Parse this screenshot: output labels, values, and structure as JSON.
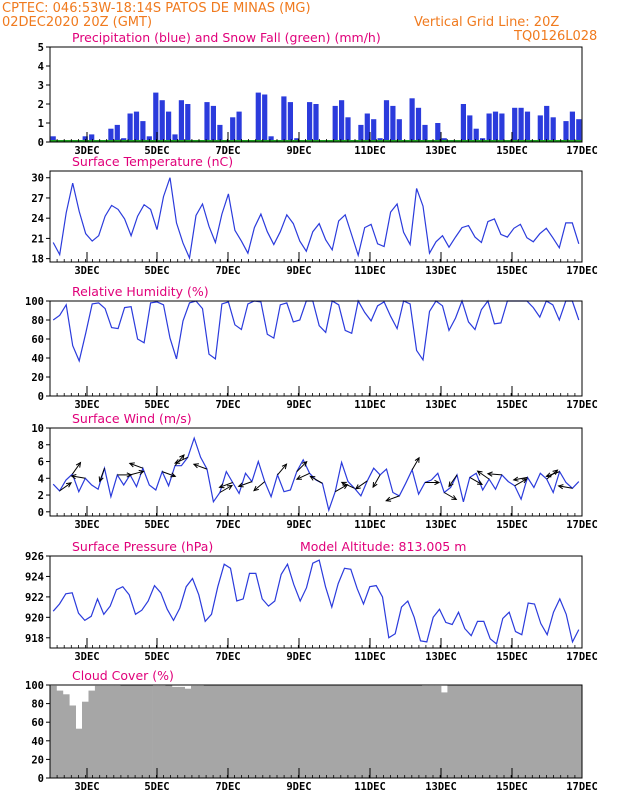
{
  "header": {
    "line1": "CPTEC:  046:53W-18:14S  PATOS DE MINAS (MG)",
    "line2": "02DEC2020 20Z (GMT)",
    "grid_note": "Vertical Grid Line: 20Z",
    "code": "TQ0126L028"
  },
  "colors": {
    "header": "#f07a1e",
    "title": "#e0007a",
    "line": "#2b3bdc",
    "snow": "#1c9c1c",
    "cloud": "#a6a6a6"
  },
  "x_labels": [
    "3DEC",
    "5DEC",
    "7DEC",
    "9DEC",
    "11DEC",
    "13DEC",
    "15DEC",
    "17DEC"
  ],
  "chart_data": [
    {
      "type": "bar",
      "title": "Precipitation (blue) and Snow Fall (green) (mm/h)",
      "ylim": [
        0,
        5
      ],
      "yticks": [
        0,
        1,
        2,
        3,
        4,
        5
      ],
      "series": [
        {
          "name": "Precipitation",
          "color": "#2b3bdc",
          "values": [
            0.3,
            0.0,
            0.0,
            0.0,
            0.0,
            0.3,
            0.4,
            0.1,
            0.0,
            0.7,
            0.9,
            0.2,
            1.5,
            1.6,
            1.1,
            0.3,
            2.6,
            2.2,
            1.6,
            0.4,
            2.2,
            2.0,
            0.0,
            0.0,
            2.1,
            1.9,
            0.9,
            0.0,
            1.3,
            1.6,
            0.0,
            0.0,
            2.6,
            2.5,
            0.3,
            0.0,
            2.4,
            2.1,
            0.2,
            0.0,
            2.1,
            2.0,
            0.0,
            0.0,
            1.9,
            2.2,
            1.3,
            0.0,
            0.9,
            1.5,
            1.2,
            0.2,
            2.2,
            1.9,
            1.2,
            0.0,
            2.3,
            1.8,
            0.9,
            0.0,
            1.0,
            0.2,
            0.0,
            0.0,
            2.0,
            1.4,
            0.7,
            0.2,
            1.5,
            1.6,
            1.5,
            0.0,
            1.8,
            1.8,
            1.6,
            0.0,
            1.4,
            1.9,
            1.3,
            0.0,
            1.1,
            1.6,
            1.2
          ]
        },
        {
          "name": "Snow Fall",
          "color": "#1c9c1c",
          "values": [
            0
          ]
        }
      ]
    },
    {
      "type": "line",
      "title": "Surface Temperature (nC)",
      "ylim": [
        17.5,
        31
      ],
      "yticks": [
        18,
        21,
        24,
        27,
        30
      ],
      "values": [
        20.4,
        18.6,
        24.8,
        29.2,
        25.0,
        21.7,
        20.6,
        21.4,
        24.3,
        25.9,
        25.3,
        23.9,
        21.4,
        24.3,
        26.0,
        25.3,
        22.3,
        27.2,
        30.0,
        23.3,
        20.3,
        18.1,
        24.4,
        26.1,
        22.8,
        20.4,
        24.6,
        27.6,
        22.2,
        20.6,
        18.8,
        22.6,
        24.6,
        22.0,
        20.1,
        22.0,
        24.5,
        23.2,
        20.6,
        19.1,
        22.0,
        23.2,
        20.8,
        19.3,
        23.6,
        24.5,
        21.5,
        18.5,
        22.6,
        23.1,
        20.2,
        19.8,
        24.9,
        26.1,
        21.9,
        20.1,
        28.4,
        25.8,
        18.8,
        20.5,
        21.4,
        19.7,
        21.2,
        22.6,
        22.9,
        21.2,
        20.4,
        23.5,
        23.9,
        21.6,
        21.2,
        22.5,
        23.1,
        21.1,
        20.5,
        21.7,
        22.5,
        21.1,
        19.6,
        23.3,
        23.3,
        20.2
      ]
    },
    {
      "type": "line",
      "title": "Relative Humidity (%)",
      "ylim": [
        0,
        100
      ],
      "yticks": [
        0,
        20,
        40,
        60,
        80,
        100
      ],
      "values": [
        80,
        85,
        96,
        53,
        37,
        66,
        97,
        98,
        92,
        72,
        71,
        93,
        94,
        60,
        56,
        98,
        99,
        96,
        61,
        39,
        79,
        98,
        100,
        92,
        44,
        39,
        97,
        99,
        75,
        70,
        97,
        100,
        99,
        65,
        61,
        96,
        98,
        78,
        80,
        100,
        100,
        74,
        67,
        100,
        96,
        69,
        66,
        100,
        88,
        79,
        95,
        99,
        84,
        71,
        100,
        97,
        48,
        38,
        89,
        100,
        95,
        69,
        82,
        100,
        78,
        70,
        91,
        100,
        76,
        77,
        100,
        100,
        100,
        100,
        93,
        83,
        100,
        96,
        80,
        100,
        100,
        80
      ]
    },
    {
      "type": "line",
      "title": "Surface Wind (m/s)",
      "ylim": [
        -0.5,
        10
      ],
      "yticks": [
        0,
        2,
        4,
        6,
        8,
        10
      ],
      "values": [
        3.3,
        2.5,
        3.8,
        4.5,
        2.4,
        4.0,
        3.2,
        2.7,
        5.2,
        1.8,
        4.4,
        3.2,
        4.4,
        3.0,
        5.2,
        3.2,
        2.6,
        4.8,
        3.1,
        5.5,
        5.5,
        6.5,
        8.8,
        6.5,
        5.1,
        1.2,
        2.3,
        4.8,
        3.5,
        2.2,
        4.6,
        3.6,
        6.0,
        3.6,
        1.8,
        4.4,
        2.4,
        2.6,
        4.8,
        6.2,
        4.6,
        3.8,
        3.4,
        0.2,
        2.4,
        5.9,
        3.6,
        2.8,
        1.9,
        3.7,
        5.2,
        4.4,
        5.1,
        2.3,
        1.9,
        3.4,
        5.0,
        2.1,
        3.5,
        3.8,
        4.6,
        2.3,
        2.9,
        4.4,
        1.2,
        4.1,
        4.6,
        2.6,
        3.9,
        2.7,
        4.4,
        3.6,
        3.1,
        1.5,
        4.1,
        2.9,
        4.6,
        3.9,
        2.3,
        4.8,
        3.5,
        2.8,
        3.6
      ],
      "arrows_deg": [
        55,
        35,
        280,
        200,
        90,
        75,
        290,
        110,
        40,
        245,
        290,
        60,
        250,
        250,
        230,
        40,
        45,
        245,
        300,
        60,
        295,
        235,
        210,
        250,
        30,
        90,
        120,
        215,
        120,
        305,
        275,
        60,
        260,
        50,
        250,
        280
      ]
    },
    {
      "type": "line",
      "title": "Surface Pressure (hPa)",
      "note": "Model Altitude: 813.005 m",
      "ylim": [
        917,
        926
      ],
      "yticks": [
        918,
        920,
        922,
        924,
        926
      ],
      "values": [
        920.6,
        921.3,
        922.3,
        922.4,
        920.4,
        919.7,
        920.1,
        921.8,
        920.3,
        921.1,
        922.7,
        923.0,
        922.2,
        920.3,
        920.7,
        921.6,
        923.1,
        922.4,
        920.8,
        919.7,
        920.9,
        923.0,
        923.8,
        922.2,
        919.6,
        920.3,
        923.0,
        925.2,
        924.8,
        921.6,
        921.8,
        924.3,
        924.3,
        921.8,
        921.1,
        921.6,
        924.2,
        925.2,
        923.2,
        921.6,
        922.9,
        925.3,
        925.6,
        923.0,
        921.0,
        923.3,
        924.8,
        924.7,
        922.8,
        921.3,
        923.0,
        923.1,
        922.0,
        918.0,
        918.4,
        921.0,
        921.6,
        920.0,
        917.7,
        917.6,
        920.0,
        920.8,
        919.5,
        919.3,
        920.5,
        918.9,
        918.2,
        919.6,
        919.6,
        917.9,
        917.4,
        919.9,
        920.5,
        918.6,
        918.3,
        921.4,
        921.3,
        919.4,
        918.3,
        920.5,
        921.8,
        920.3,
        917.6,
        918.8
      ]
    },
    {
      "type": "area",
      "title": "Cloud Cover (%)",
      "ylim": [
        0,
        100
      ],
      "yticks": [
        0,
        20,
        40,
        60,
        80,
        100
      ],
      "values": [
        99,
        94,
        90,
        78,
        53,
        82,
        94,
        99,
        99,
        99,
        99,
        100,
        100,
        100,
        100,
        100,
        99,
        99,
        100,
        98,
        98,
        96,
        99,
        99,
        100,
        100,
        100,
        100,
        100,
        100,
        100,
        100,
        100,
        100,
        100,
        100,
        100,
        100,
        100,
        100,
        100,
        100,
        100,
        100,
        100,
        100,
        100,
        100,
        100,
        100,
        100,
        100,
        100,
        100,
        100,
        100,
        100,
        100,
        99,
        99,
        99,
        92,
        100,
        100,
        100,
        100,
        100,
        100,
        100,
        100,
        100,
        100,
        100,
        100,
        100,
        100,
        100,
        100,
        100,
        100,
        100,
        100,
        100
      ]
    }
  ]
}
